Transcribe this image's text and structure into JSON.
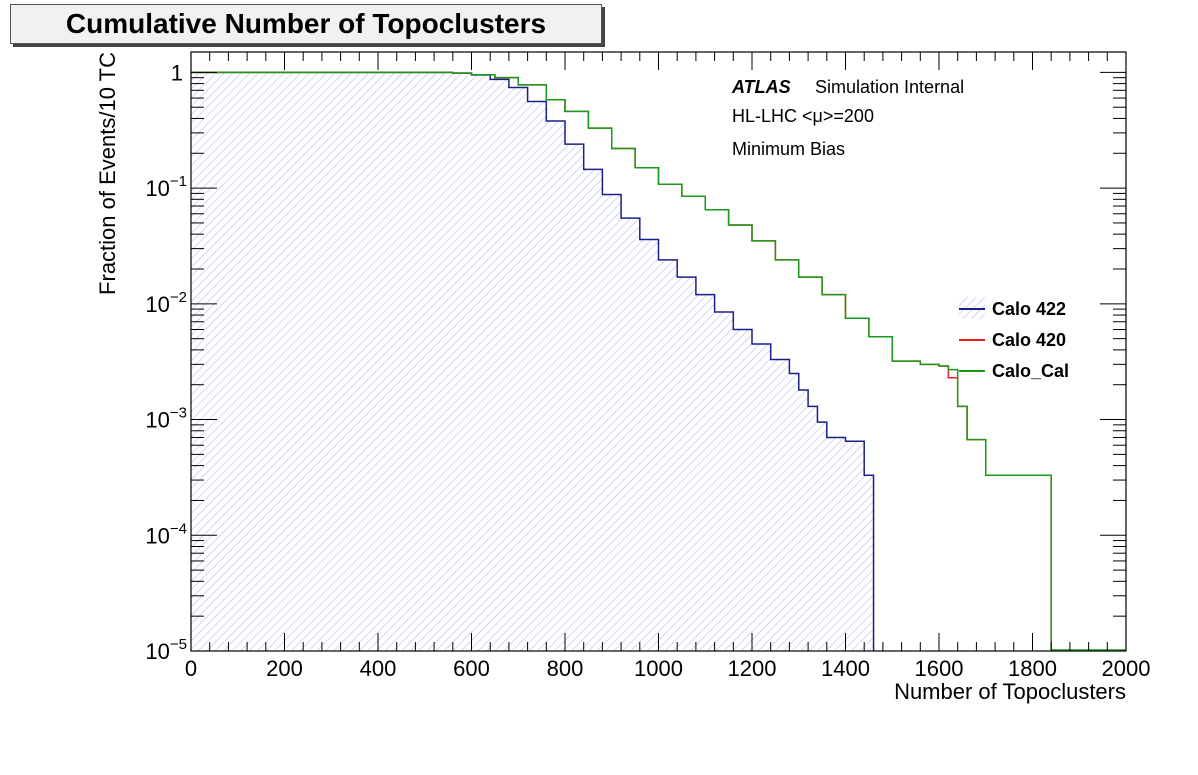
{
  "chart_data": {
    "type": "line",
    "title": "Cumulative Number of Topoclusters",
    "xlabel": "Number of Topoclusters",
    "ylabel": "Fraction of Events/10 TC",
    "xlim": [
      0,
      2000
    ],
    "ylim": [
      1e-05,
      1.5
    ],
    "yscale": "log",
    "x_ticks": [
      0,
      200,
      400,
      600,
      800,
      1000,
      1200,
      1400,
      1600,
      1800,
      2000
    ],
    "y_ticks": [
      {
        "value": 1,
        "label": "1"
      },
      {
        "value": 0.1,
        "base": "10",
        "exp": "−1"
      },
      {
        "value": 0.01,
        "base": "10",
        "exp": "−2"
      },
      {
        "value": 0.001,
        "base": "10",
        "exp": "−3"
      },
      {
        "value": 0.0001,
        "base": "10",
        "exp": "−4"
      },
      {
        "value": 1e-05,
        "base": "10",
        "exp": "−5"
      }
    ],
    "annotations": {
      "atlas": "ATLAS",
      "status": "Simulation Internal",
      "conditions": "HL-LHC <μ>=200",
      "sample": "Minimum Bias"
    },
    "legend_position": "right",
    "series": [
      {
        "name": "Calo 422",
        "color": "#1a1f8c",
        "fill": "hatched",
        "points": [
          [
            0,
            1
          ],
          [
            500,
            1
          ],
          [
            560,
            0.985
          ],
          [
            600,
            0.95
          ],
          [
            640,
            0.87
          ],
          [
            680,
            0.74
          ],
          [
            720,
            0.56
          ],
          [
            760,
            0.38
          ],
          [
            800,
            0.24
          ],
          [
            840,
            0.145
          ],
          [
            880,
            0.088
          ],
          [
            920,
            0.055
          ],
          [
            960,
            0.036
          ],
          [
            1000,
            0.024
          ],
          [
            1040,
            0.017
          ],
          [
            1080,
            0.012
          ],
          [
            1120,
            0.0085
          ],
          [
            1160,
            0.006
          ],
          [
            1200,
            0.0045
          ],
          [
            1240,
            0.0033
          ],
          [
            1280,
            0.0025
          ],
          [
            1300,
            0.0018
          ],
          [
            1320,
            0.0013
          ],
          [
            1340,
            0.00095
          ],
          [
            1360,
            0.0007
          ],
          [
            1400,
            0.00065
          ],
          [
            1440,
            0.00033
          ],
          [
            1460,
            0.00033
          ]
        ],
        "end_x": 1460
      },
      {
        "name": "Calo 420",
        "color": "#ee1c1c",
        "points": [
          [
            0,
            1
          ],
          [
            500,
            1
          ],
          [
            560,
            0.985
          ],
          [
            600,
            0.955
          ],
          [
            650,
            0.9
          ],
          [
            700,
            0.78
          ],
          [
            760,
            0.58
          ],
          [
            800,
            0.46
          ],
          [
            850,
            0.33
          ],
          [
            900,
            0.22
          ],
          [
            950,
            0.15
          ],
          [
            1000,
            0.108
          ],
          [
            1050,
            0.085
          ],
          [
            1100,
            0.065
          ],
          [
            1150,
            0.048
          ],
          [
            1200,
            0.035
          ],
          [
            1250,
            0.024
          ],
          [
            1300,
            0.017
          ],
          [
            1350,
            0.012
          ],
          [
            1400,
            0.0075
          ],
          [
            1450,
            0.0052
          ],
          [
            1500,
            0.0032
          ],
          [
            1560,
            0.003
          ],
          [
            1600,
            0.0029
          ],
          [
            1620,
            0.0023
          ],
          [
            1640,
            0.0013
          ],
          [
            1660,
            0.00067
          ],
          [
            1700,
            0.00033
          ],
          [
            1840,
            0.00033
          ]
        ],
        "end_x": 1840
      },
      {
        "name": "Calo_Cal",
        "color": "#1a9a1a",
        "points": [
          [
            0,
            1
          ],
          [
            500,
            1
          ],
          [
            560,
            0.985
          ],
          [
            600,
            0.955
          ],
          [
            650,
            0.9
          ],
          [
            700,
            0.78
          ],
          [
            760,
            0.58
          ],
          [
            800,
            0.46
          ],
          [
            850,
            0.33
          ],
          [
            900,
            0.22
          ],
          [
            950,
            0.15
          ],
          [
            1000,
            0.108
          ],
          [
            1050,
            0.085
          ],
          [
            1100,
            0.065
          ],
          [
            1150,
            0.048
          ],
          [
            1200,
            0.035
          ],
          [
            1250,
            0.024
          ],
          [
            1300,
            0.017
          ],
          [
            1350,
            0.012
          ],
          [
            1400,
            0.0075
          ],
          [
            1450,
            0.0052
          ],
          [
            1500,
            0.0032
          ],
          [
            1560,
            0.003
          ],
          [
            1600,
            0.0029
          ],
          [
            1620,
            0.0027
          ],
          [
            1640,
            0.0013
          ],
          [
            1660,
            0.00067
          ],
          [
            1700,
            0.00033
          ],
          [
            1840,
            0.00033
          ]
        ],
        "end_x": 1840
      }
    ]
  }
}
